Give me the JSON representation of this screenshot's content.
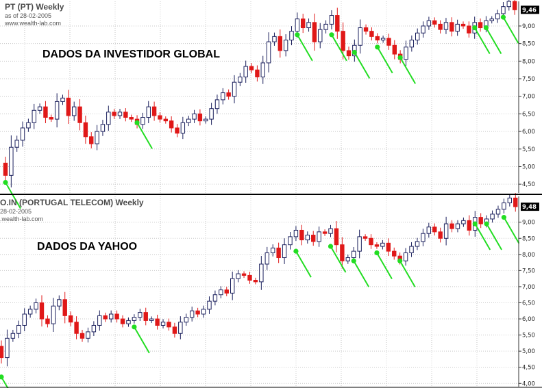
{
  "colors": {
    "up_fill": "#ffffff",
    "up_stroke": "#1a1f5c",
    "down": "#e01818",
    "marker": "#22dd22",
    "grid": "#c8c8c8"
  },
  "chart_data": [
    {
      "type": "candlestick",
      "title": "PT (PT) Weekly",
      "subtitle": "as of 28-02-2005",
      "site": "www.wealth-lab.com",
      "annotation": "DADOS DA INVESTIDOR GLOBAL",
      "ylim": [
        4.25,
        9.7
      ],
      "yticks": [
        "4,50",
        "5,00",
        "5,50",
        "6,00",
        "6,50",
        "7,00",
        "7,50",
        "8,00",
        "8,50",
        "9,00"
      ],
      "last_value": 9.46,
      "last_label": "9,46",
      "close": [
        4.75,
        5.55,
        5.75,
        6.1,
        6.25,
        6.6,
        6.7,
        6.4,
        6.35,
        6.85,
        6.95,
        6.45,
        6.7,
        6.25,
        5.85,
        5.65,
        6.0,
        6.2,
        6.55,
        6.45,
        6.55,
        6.4,
        6.35,
        6.2,
        6.4,
        6.7,
        6.45,
        6.35,
        6.3,
        6.1,
        5.95,
        6.25,
        6.35,
        6.5,
        6.3,
        6.35,
        6.65,
        6.9,
        7.1,
        7.0,
        7.4,
        7.55,
        7.85,
        7.75,
        7.55,
        7.95,
        8.55,
        8.7,
        8.3,
        8.6,
        8.85,
        9.2,
        8.95,
        9.1,
        8.55,
        8.9,
        9.05,
        9.3,
        8.85,
        8.3,
        8.15,
        8.45,
        8.95,
        8.85,
        8.7,
        8.6,
        8.65,
        8.45,
        8.2,
        8.05,
        8.4,
        8.6,
        8.8,
        9.0,
        9.15,
        9.05,
        8.9,
        9.1,
        8.85,
        9.05,
        9.0,
        8.8,
        9.1,
        8.95,
        9.15,
        9.2,
        9.35,
        9.55,
        9.7,
        9.46
      ],
      "markers": [
        {
          "i": 0,
          "value": 4.55
        },
        {
          "i": 23,
          "value": 6.25
        },
        {
          "i": 51,
          "value": 8.75
        },
        {
          "i": 57,
          "value": 8.75
        },
        {
          "i": 61,
          "value": 8.25
        },
        {
          "i": 65,
          "value": 8.4
        },
        {
          "i": 69,
          "value": 8.1
        },
        {
          "i": 82,
          "value": 8.95
        },
        {
          "i": 84,
          "value": 8.95
        },
        {
          "i": 87,
          "value": 9.25
        }
      ]
    },
    {
      "type": "candlestick",
      "title": "O.IN (PORTUGAL TELECOM) Weekly",
      "subtitle": "28-02-2005",
      "site": ".wealth-lab.com",
      "annotation": "DADOS DA YAHOO",
      "ylim": [
        3.9,
        9.8
      ],
      "yticks": [
        "4,00",
        "4,50",
        "5,00",
        "5,50",
        "6,00",
        "6,50",
        "7,00",
        "7,50",
        "8,00",
        "8,50",
        "9,00"
      ],
      "last_value": 9.48,
      "last_label": "9,48",
      "close": [
        4.8,
        5.4,
        5.55,
        5.8,
        6.15,
        6.3,
        6.5,
        6.0,
        5.85,
        6.4,
        6.6,
        6.1,
        5.9,
        5.55,
        5.4,
        5.6,
        5.8,
        6.1,
        6.0,
        6.15,
        6.0,
        5.85,
        5.95,
        6.05,
        6.2,
        5.95,
        6.0,
        5.8,
        5.9,
        5.75,
        5.55,
        5.9,
        6.05,
        6.25,
        6.15,
        6.3,
        6.55,
        6.75,
        6.9,
        6.8,
        7.25,
        7.4,
        7.35,
        7.2,
        7.15,
        7.7,
        8.05,
        8.2,
        7.9,
        8.3,
        8.55,
        8.75,
        8.45,
        8.6,
        8.4,
        8.7,
        8.65,
        8.8,
        8.3,
        7.8,
        7.9,
        8.1,
        8.55,
        8.5,
        8.3,
        8.25,
        8.35,
        8.1,
        7.95,
        7.8,
        8.05,
        8.25,
        8.4,
        8.65,
        8.85,
        8.7,
        8.5,
        8.95,
        8.8,
        8.95,
        9.05,
        8.75,
        9.15,
        8.95,
        9.1,
        9.25,
        9.4,
        9.6,
        9.75,
        9.48
      ],
      "markers": [
        {
          "i": 0,
          "value": 4.2
        },
        {
          "i": 23,
          "value": 5.75
        },
        {
          "i": 51,
          "value": 8.1
        },
        {
          "i": 57,
          "value": 8.25
        },
        {
          "i": 61,
          "value": 7.8
        },
        {
          "i": 65,
          "value": 8.05
        },
        {
          "i": 69,
          "value": 7.8
        },
        {
          "i": 82,
          "value": 8.95
        },
        {
          "i": 84,
          "value": 8.95
        },
        {
          "i": 87,
          "value": 9.15
        }
      ]
    }
  ]
}
